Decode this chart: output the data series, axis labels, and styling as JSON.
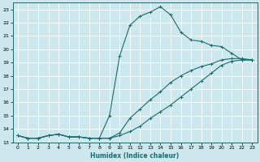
{
  "xlabel": "Humidex (Indice chaleur)",
  "bg_color": "#cce8ee",
  "grid_color": "#ffffff",
  "line_color": "#1a6b6b",
  "xlim": [
    -0.5,
    23.5
  ],
  "ylim": [
    13,
    23.5
  ],
  "yticks": [
    13,
    14,
    15,
    16,
    17,
    18,
    19,
    20,
    21,
    22,
    23
  ],
  "xticks": [
    0,
    1,
    2,
    3,
    4,
    5,
    6,
    7,
    8,
    9,
    10,
    11,
    12,
    13,
    14,
    15,
    16,
    17,
    18,
    19,
    20,
    21,
    22,
    23
  ],
  "line1_x": [
    0,
    1,
    2,
    3,
    4,
    5,
    6,
    7,
    8,
    9,
    10,
    11,
    12,
    13,
    14,
    15,
    16,
    17,
    18,
    19,
    20,
    21,
    22,
    23
  ],
  "line1_y": [
    13.5,
    13.3,
    13.3,
    13.5,
    13.6,
    13.4,
    13.4,
    13.3,
    13.3,
    13.3,
    13.5,
    13.8,
    14.2,
    14.8,
    15.3,
    15.8,
    16.4,
    17.0,
    17.6,
    18.2,
    18.8,
    19.1,
    19.2,
    19.2
  ],
  "line2_x": [
    0,
    1,
    2,
    3,
    4,
    5,
    6,
    7,
    8,
    9,
    10,
    11,
    12,
    13,
    14,
    15,
    16,
    17,
    18,
    19,
    20,
    21,
    22,
    23
  ],
  "line2_y": [
    13.5,
    13.3,
    13.3,
    13.5,
    13.6,
    13.4,
    13.4,
    13.3,
    13.3,
    13.3,
    13.7,
    14.8,
    15.5,
    16.2,
    16.8,
    17.5,
    18.0,
    18.4,
    18.7,
    18.9,
    19.2,
    19.3,
    19.3,
    19.2
  ],
  "line3_x": [
    0,
    1,
    2,
    3,
    4,
    5,
    6,
    7,
    8,
    9,
    10,
    11,
    12,
    13,
    14,
    15,
    16,
    17,
    18,
    19,
    20,
    21,
    22,
    23
  ],
  "line3_y": [
    13.5,
    13.3,
    13.3,
    13.5,
    13.6,
    13.4,
    13.4,
    13.3,
    13.3,
    15.0,
    19.5,
    21.8,
    22.5,
    22.8,
    23.2,
    22.6,
    21.3,
    20.7,
    20.6,
    20.3,
    20.2,
    19.7,
    19.2,
    19.2
  ]
}
